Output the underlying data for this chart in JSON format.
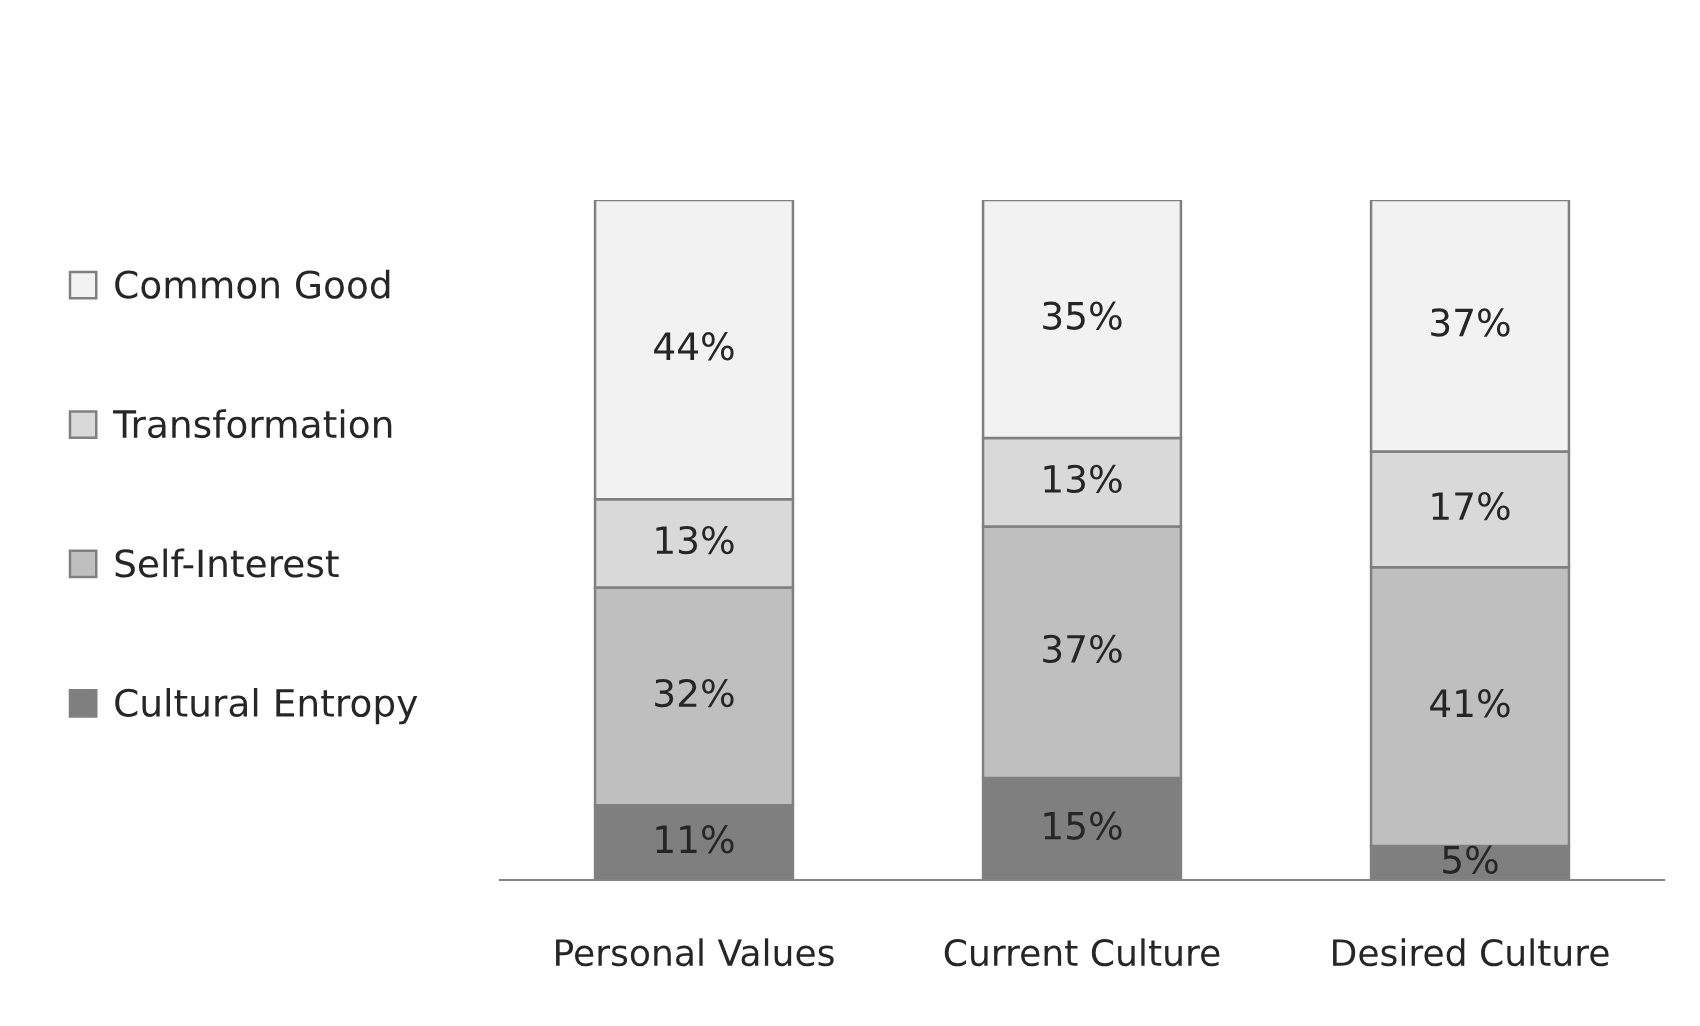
{
  "chart_data": {
    "type": "bar",
    "stacked": true,
    "legend": "left",
    "tick_labels": "x",
    "categories": [
      "Personal Values",
      "Current Culture",
      "Desired Culture"
    ],
    "series": [
      {
        "name": "Cultural Entropy",
        "color": "#7f7f7f",
        "values": [
          11,
          15,
          5
        ],
        "value_labels": [
          "11%",
          "15%",
          "5%"
        ]
      },
      {
        "name": "Self-Interest",
        "color": "#bfbfbf",
        "values": [
          32,
          37,
          41
        ],
        "value_labels": [
          "32%",
          "37%",
          "41%"
        ]
      },
      {
        "name": "Transformation",
        "color": "#d9d9d9",
        "values": [
          13,
          13,
          17
        ],
        "value_labels": [
          "13%",
          "13%",
          "17%"
        ]
      },
      {
        "name": "Common Good",
        "color": "#f2f2f2",
        "values": [
          44,
          35,
          37
        ],
        "value_labels": [
          "44%",
          "35%",
          "37%"
        ]
      }
    ]
  }
}
